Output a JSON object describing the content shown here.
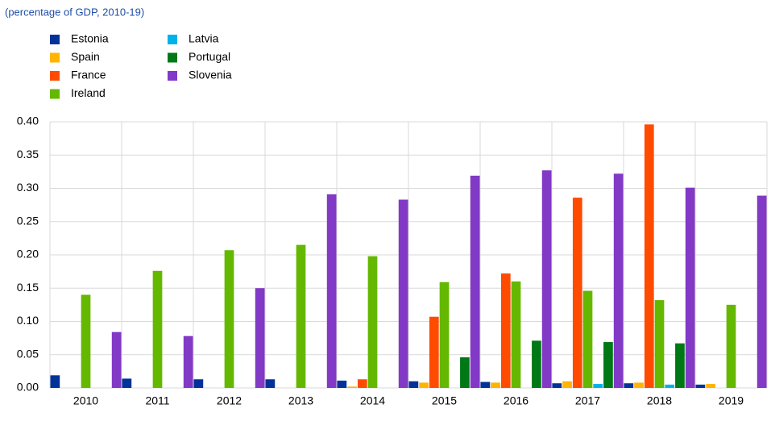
{
  "chart_data": {
    "type": "bar",
    "title": "(percentage of GDP, 2010-19)",
    "categories": [
      "2010",
      "2011",
      "2012",
      "2013",
      "2014",
      "2015",
      "2016",
      "2017",
      "2018",
      "2019"
    ],
    "series": [
      {
        "name": "Estonia",
        "color": "#003299",
        "values": [
          0.019,
          0.014,
          0.013,
          0.013,
          0.011,
          0.01,
          0.009,
          0.007,
          0.007,
          0.005
        ]
      },
      {
        "name": "Spain",
        "color": "#ffb400",
        "values": [
          0,
          0,
          0,
          0,
          0.002,
          0.008,
          0.008,
          0.01,
          0.008,
          0.006
        ]
      },
      {
        "name": "France",
        "color": "#ff4b00",
        "values": [
          0,
          0,
          0,
          0,
          0.013,
          0.107,
          0.172,
          0.286,
          0.396,
          0
        ]
      },
      {
        "name": "Ireland",
        "color": "#65b800",
        "values": [
          0.14,
          0.176,
          0.207,
          0.215,
          0.198,
          0.159,
          0.16,
          0.146,
          0.132,
          0.125
        ]
      },
      {
        "name": "Latvia",
        "color": "#00b1ea",
        "values": [
          0,
          0,
          0,
          0,
          0,
          0,
          0,
          0.006,
          0.005,
          0
        ]
      },
      {
        "name": "Portugal",
        "color": "#007816",
        "values": [
          0,
          0,
          0,
          0,
          0,
          0.046,
          0.071,
          0.069,
          0.067,
          0
        ]
      },
      {
        "name": "Slovenia",
        "color": "#8139c6",
        "values": [
          0.084,
          0.078,
          0.15,
          0.291,
          0.283,
          0.319,
          0.327,
          0.322,
          0.301,
          0.289
        ]
      }
    ],
    "ylim": [
      0,
      0.4
    ],
    "yticks": [
      {
        "value": 0,
        "label": "0.00"
      },
      {
        "value": 0.05,
        "label": "0.05"
      },
      {
        "value": 0.1,
        "label": "0.10"
      },
      {
        "value": 0.15,
        "label": "0.15"
      },
      {
        "value": 0.2,
        "label": "0.20"
      },
      {
        "value": 0.25,
        "label": "0.25"
      },
      {
        "value": 0.3,
        "label": "0.30"
      },
      {
        "value": 0.35,
        "label": "0.35"
      },
      {
        "value": 0.4,
        "label": "0.40"
      }
    ],
    "grid": true
  }
}
